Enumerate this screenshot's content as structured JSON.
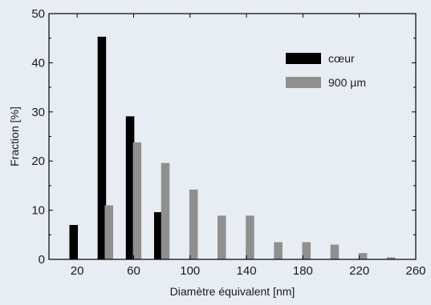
{
  "chart_data": {
    "type": "bar",
    "xlabel": "Diamètre équivalent [nm]",
    "ylabel": "Fraction [%]",
    "xlim": [
      0,
      260
    ],
    "ylim": [
      0,
      50
    ],
    "xticks": [
      20,
      60,
      100,
      140,
      180,
      220,
      260
    ],
    "yticks": [
      0,
      10,
      20,
      30,
      40,
      50
    ],
    "grid": false,
    "legend_position": "top-right",
    "bar_width": 6,
    "series": [
      {
        "name": "cœur",
        "color": "#000000",
        "x": [
          17.5,
          37.5,
          57.5,
          77.5
        ],
        "values": [
          7,
          45.3,
          29.1,
          9.6
        ]
      },
      {
        "name": "900 µm",
        "color": "#8f8f8f",
        "x": [
          42.5,
          62.5,
          82.5,
          102.5,
          122.5,
          142.5,
          162.5,
          182.5,
          202.5,
          222.5,
          242.5
        ],
        "values": [
          11,
          23.8,
          19.6,
          14.2,
          8.9,
          8.9,
          3.5,
          3.5,
          3,
          1.3,
          0.4
        ]
      }
    ]
  }
}
